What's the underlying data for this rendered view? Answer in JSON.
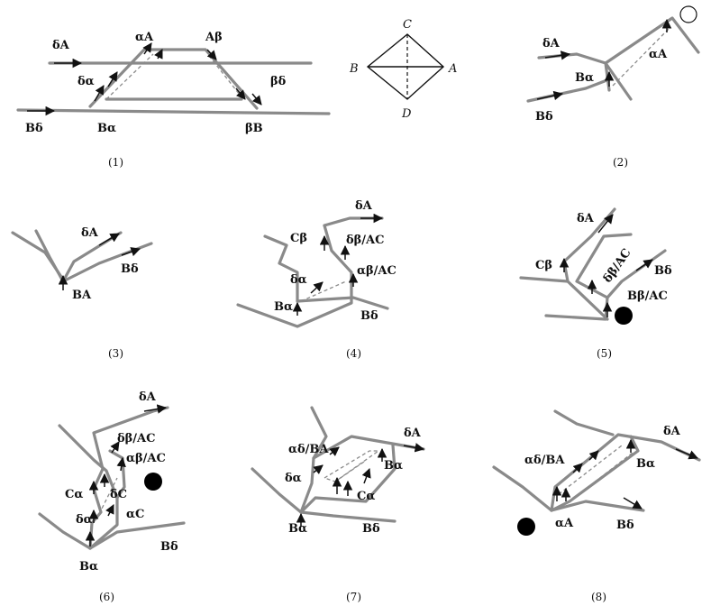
{
  "panels": [
    {
      "caption": "(1)",
      "labels": {
        "dA": "δA",
        "aA": "αA",
        "Ab": "Aβ",
        "da": "δα",
        "bd": "βδ",
        "Bd": "Bδ",
        "Ba": "Bα",
        "bB": "βB"
      }
    },
    {
      "caption": "",
      "labels": {
        "C": "C",
        "B": "B",
        "A": "A",
        "D": "D"
      }
    },
    {
      "caption": "(2)",
      "labels": {
        "dA": "δA",
        "Ba": "Bα",
        "aA": "αA",
        "Bd": "Bδ"
      }
    },
    {
      "caption": "(3)",
      "labels": {
        "dA": "δA",
        "Bd": "Bδ",
        "BA": "BA"
      }
    },
    {
      "caption": "(4)",
      "labels": {
        "dA": "δA",
        "Cb": "Cβ",
        "dbAC": "δβ/AC",
        "abAC": "αβ/AC",
        "da": "δα",
        "Ba": "Bα",
        "Bd": "Bδ"
      }
    },
    {
      "caption": "(5)",
      "labels": {
        "dA": "δA",
        "Cb": "Cβ",
        "dbAC": "δβ/AC",
        "Bd": "Bδ",
        "BbAC": "Bβ/AC"
      }
    },
    {
      "caption": "(6)",
      "labels": {
        "dA": "δA",
        "dbAC": "δβ/AC",
        "abAC": "αβ/AC",
        "Ca": "Cα",
        "dC": "δC",
        "da": "δα",
        "aC": "αC",
        "Ba": "Bα",
        "Bd": "Bδ"
      }
    },
    {
      "caption": "(7)",
      "labels": {
        "adBA": "αδ/BA",
        "dA": "δA",
        "da": "δα",
        "Ba_r": "Bα",
        "Ca": "Cα",
        "Ba": "Bα",
        "Bd": "Bδ"
      }
    },
    {
      "caption": "(8)",
      "labels": {
        "adBA": "αδ/BA",
        "dA": "δA",
        "Ba": "Bα",
        "aA": "αA",
        "Bd": "Bδ"
      }
    }
  ]
}
